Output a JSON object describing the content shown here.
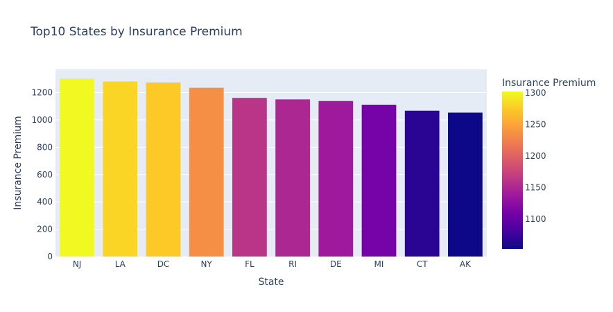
{
  "chart_data": {
    "type": "bar",
    "title": "Top10 States by Insurance Premium",
    "xlabel": "State",
    "ylabel": "Insurance Premium",
    "categories": [
      "NJ",
      "LA",
      "DC",
      "NY",
      "FL",
      "RI",
      "DE",
      "MI",
      "CT",
      "AK"
    ],
    "values": [
      1302,
      1281,
      1274,
      1235,
      1161,
      1150,
      1138,
      1111,
      1067,
      1053
    ],
    "ylim": [
      0,
      1370
    ],
    "yticks": [
      0,
      200,
      400,
      600,
      800,
      1000,
      1200
    ],
    "grid": true,
    "colorbar": {
      "title": "Insurance Premium",
      "range": [
        1053,
        1302
      ],
      "ticks": [
        1100,
        1150,
        1200,
        1250,
        1300
      ]
    },
    "colors": {
      "plot_bg": "#e5ecf6",
      "text": "#2a3f5f",
      "colorscale": [
        "#0d0887",
        "#46039f",
        "#7201a8",
        "#9c179e",
        "#bd3786",
        "#d8576b",
        "#ed7953",
        "#fb9f3a",
        "#fdca26",
        "#f0f921"
      ]
    }
  }
}
